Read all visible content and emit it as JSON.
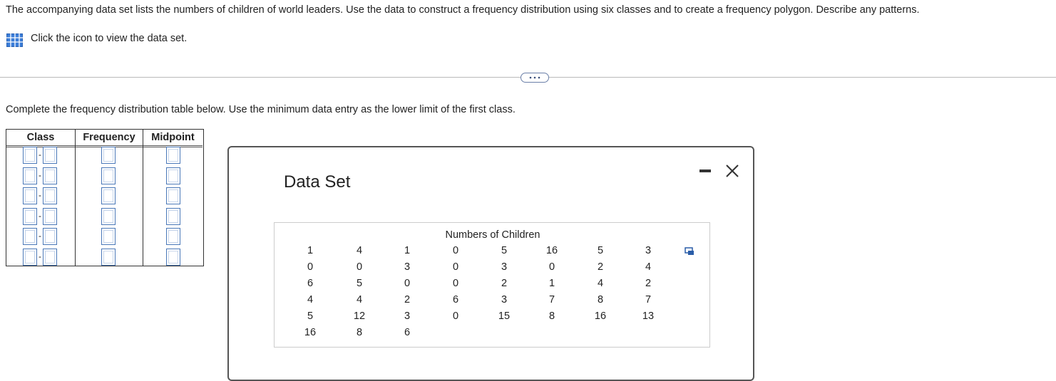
{
  "question": {
    "text": "The accompanying data set lists the numbers of children of world leaders. Use the data to construct a frequency distribution using six classes and to create a frequency polygon. Describe any patterns.",
    "link": "Click the icon to view the data set."
  },
  "instruction": "Complete the frequency distribution table below. Use the minimum data entry as the lower limit of the first class.",
  "frequency_table": {
    "headers": [
      "Class",
      "Frequency",
      "Midpoint"
    ]
  },
  "dialog": {
    "title": "Data Set",
    "table": {
      "caption": "Numbers of Children",
      "rows": [
        [
          1,
          4,
          1,
          0,
          5,
          16,
          5,
          3
        ],
        [
          0,
          0,
          3,
          0,
          3,
          0,
          2,
          4
        ],
        [
          6,
          5,
          0,
          0,
          2,
          1,
          4,
          2
        ],
        [
          4,
          4,
          2,
          6,
          3,
          7,
          8,
          7
        ],
        [
          5,
          12,
          3,
          0,
          15,
          8,
          16,
          13
        ],
        [
          16,
          8,
          6
        ]
      ]
    }
  }
}
